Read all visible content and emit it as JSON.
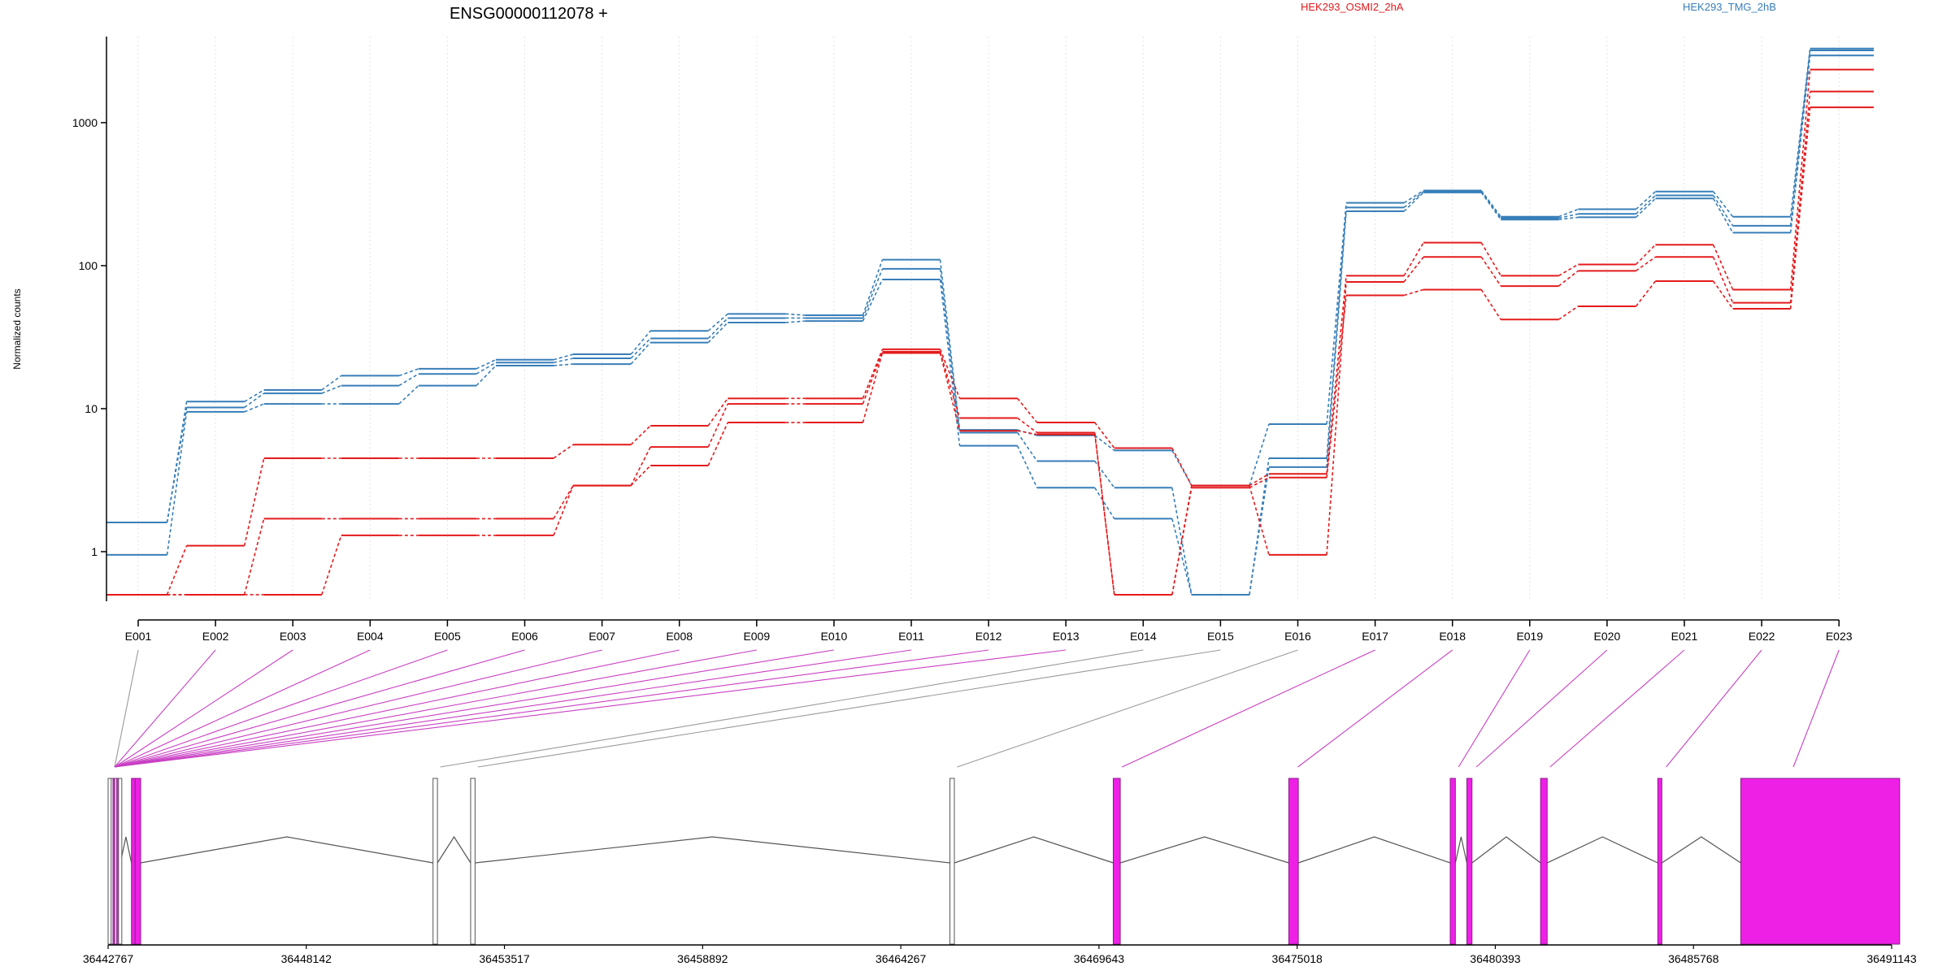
{
  "chart_data": {
    "type": "line",
    "title": "ENSG00000112078 +",
    "ylabel": "Normalized counts",
    "xlabel": "",
    "yscale": "log10",
    "ylim": [
      0.45,
      4000
    ],
    "yticks": [
      1,
      10,
      100,
      1000
    ],
    "ytick_labels": [
      "1",
      "10",
      "100",
      "1000"
    ],
    "grid": "vertical",
    "legend": [
      {
        "name": "HEK293_OSMI2_2hA",
        "color": "#e41a1c"
      },
      {
        "name": "HEK293_TMG_2hB",
        "color": "#377eb8"
      }
    ],
    "categories": [
      "E001",
      "E002",
      "E003",
      "E004",
      "E005",
      "E006",
      "E007",
      "E008",
      "E009",
      "E010",
      "E011",
      "E012",
      "E013",
      "E014",
      "E015",
      "E016",
      "E017",
      "E018",
      "E019",
      "E020",
      "E021",
      "E022",
      "E023"
    ],
    "series": [
      {
        "color": "#377eb8",
        "values": [
          1.6,
          11.2,
          13.5,
          17,
          19,
          22,
          24,
          35,
          46,
          45,
          110,
          7.1,
          6.5,
          5.1,
          2.9,
          7.8,
          275,
          335,
          220,
          248,
          330,
          220,
          3300
        ]
      },
      {
        "color": "#377eb8",
        "values": [
          1.6,
          10.2,
          12.8,
          14.5,
          17.5,
          21,
          22.5,
          31,
          43,
          43,
          95,
          6.8,
          4.3,
          2.8,
          0.5,
          4.5,
          255,
          330,
          215,
          230,
          310,
          190,
          3200
        ]
      },
      {
        "color": "#377eb8",
        "values": [
          0.95,
          9.5,
          10.8,
          10.8,
          14.5,
          20,
          20.5,
          29,
          40,
          41,
          80,
          5.5,
          2.8,
          1.7,
          0.5,
          3.9,
          240,
          325,
          210,
          218,
          295,
          170,
          2950
        ]
      },
      {
        "color": "#e41a1c",
        "values": [
          0.5,
          1.1,
          4.5,
          4.5,
          4.5,
          4.5,
          5.6,
          7.6,
          11.8,
          11.8,
          26,
          11.8,
          8.0,
          5.3,
          2.9,
          3.5,
          85,
          145,
          85,
          102,
          140,
          68,
          2350
        ]
      },
      {
        "color": "#e41a1c",
        "values": [
          0.5,
          0.5,
          1.7,
          1.7,
          1.7,
          1.7,
          2.9,
          5.4,
          10.8,
          10.8,
          25,
          8.6,
          6.8,
          0.5,
          2.9,
          0.95,
          77,
          115,
          72,
          92,
          115,
          55,
          1650
        ]
      },
      {
        "color": "#e41a1c",
        "values": [
          0.5,
          0.5,
          0.5,
          1.3,
          1.3,
          1.3,
          2.9,
          4.0,
          8.0,
          8.0,
          24.5,
          7.0,
          6.6,
          0.5,
          2.8,
          3.3,
          62,
          68,
          42,
          52,
          78,
          50,
          1280
        ]
      }
    ],
    "gene_model": {
      "genomic_range": [
        36442767,
        36491143
      ],
      "tick_labels": [
        "36442767",
        "36448142",
        "36453517",
        "36458892",
        "36464267",
        "36469643",
        "36475018",
        "36480393",
        "36485768",
        "36491143"
      ],
      "tick_values": [
        36442767,
        36448142,
        36453517,
        36458892,
        36464267,
        36469643,
        36475018,
        36480393,
        36485768,
        36491143
      ],
      "exon_color": "#ee20e6",
      "exons": [
        {
          "start": 36442767,
          "end": 36442850,
          "significant": false
        },
        {
          "start": 36442850,
          "end": 36442900,
          "significant": false
        },
        {
          "start": 36442900,
          "end": 36442950,
          "significant": true
        },
        {
          "start": 36442950,
          "end": 36443000,
          "significant": false
        },
        {
          "start": 36443000,
          "end": 36443050,
          "significant": true
        },
        {
          "start": 36443050,
          "end": 36443100,
          "significant": false
        },
        {
          "start": 36443400,
          "end": 36443500,
          "significant": true
        },
        {
          "start": 36443500,
          "end": 36443650,
          "significant": true
        },
        {
          "start": 36451580,
          "end": 36451700,
          "significant": false
        },
        {
          "start": 36452600,
          "end": 36452720,
          "significant": false
        },
        {
          "start": 36465600,
          "end": 36465720,
          "significant": false
        },
        {
          "start": 36470030,
          "end": 36470220,
          "significant": true
        },
        {
          "start": 36474790,
          "end": 36475050,
          "significant": true
        },
        {
          "start": 36479170,
          "end": 36479310,
          "significant": true
        },
        {
          "start": 36479620,
          "end": 36479760,
          "significant": true
        },
        {
          "start": 36481620,
          "end": 36481800,
          "significant": true
        },
        {
          "start": 36484800,
          "end": 36484910,
          "significant": true
        },
        {
          "start": 36487050,
          "end": 36491360,
          "significant": true
        }
      ],
      "exon_links": [
        {
          "bin": 0,
          "anchor": 36442767,
          "significant": false
        },
        {
          "bin": 1,
          "anchor": 36442767,
          "significant": true
        },
        {
          "bin": 2,
          "anchor": 36442767,
          "significant": true
        },
        {
          "bin": 3,
          "anchor": 36442767,
          "significant": true
        },
        {
          "bin": 4,
          "anchor": 36442767,
          "significant": true
        },
        {
          "bin": 5,
          "anchor": 36442767,
          "significant": true
        },
        {
          "bin": 6,
          "anchor": 36442767,
          "significant": true
        },
        {
          "bin": 7,
          "anchor": 36442767,
          "significant": true
        },
        {
          "bin": 8,
          "anchor": 36442767,
          "significant": true
        },
        {
          "bin": 9,
          "anchor": 36442767,
          "significant": true
        },
        {
          "bin": 10,
          "anchor": 36442767,
          "significant": true
        },
        {
          "bin": 11,
          "anchor": 36442767,
          "significant": true
        },
        {
          "bin": 12,
          "anchor": 36442767,
          "significant": true
        },
        {
          "bin": 13,
          "anchor": 36451600,
          "significant": false
        },
        {
          "bin": 14,
          "anchor": 36452620,
          "significant": false
        },
        {
          "bin": 15,
          "anchor": 36465620,
          "significant": false
        },
        {
          "bin": 16,
          "anchor": 36470090,
          "significant": true
        },
        {
          "bin": 17,
          "anchor": 36474860,
          "significant": true
        },
        {
          "bin": 18,
          "anchor": 36479220,
          "significant": true
        },
        {
          "bin": 19,
          "anchor": 36479700,
          "significant": true
        },
        {
          "bin": 20,
          "anchor": 36481700,
          "significant": true
        },
        {
          "bin": 21,
          "anchor": 36484850,
          "significant": true
        },
        {
          "bin": 22,
          "anchor": 36488300,
          "significant": true
        }
      ]
    }
  }
}
